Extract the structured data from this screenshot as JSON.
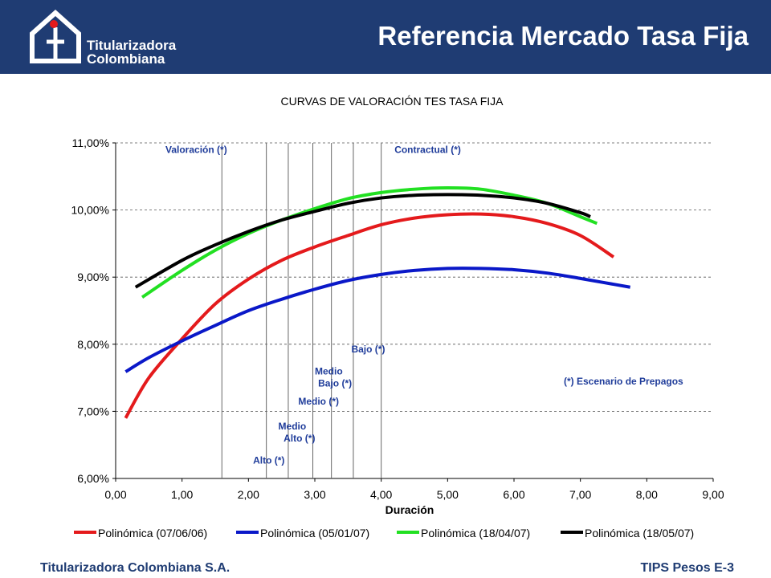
{
  "header": {
    "title": "Referencia Mercado Tasa Fija",
    "logo_line1": "Titularizadora",
    "logo_line2": "Colombiana",
    "background": "#1f3c73"
  },
  "footer": {
    "left": "Titularizadora Colombiana S.A.",
    "right": "TIPS Pesos E-3"
  },
  "chart_data": {
    "type": "line",
    "title": "CURVAS DE VALORACIÓN TES TASA FIJA",
    "xlabel": "Duración",
    "ylabel": "",
    "xlim": [
      0,
      9
    ],
    "ylim": [
      0.06,
      0.11
    ],
    "x_ticks": [
      "0,00",
      "1,00",
      "2,00",
      "3,00",
      "4,00",
      "5,00",
      "6,00",
      "7,00",
      "8,00",
      "9,00"
    ],
    "y_ticks": [
      "6,00%",
      "7,00%",
      "8,00%",
      "9,00%",
      "10,00%",
      "11,00%"
    ],
    "y_tick_values": [
      0.06,
      0.07,
      0.08,
      0.09,
      0.1,
      0.11
    ],
    "grid": "horizontal dashed",
    "legend_position": "bottom",
    "series": [
      {
        "name": "Polinómica (07/06/06)",
        "color": "#e41a1c",
        "x": [
          0.15,
          0.5,
          1.0,
          1.5,
          2.0,
          2.5,
          3.0,
          3.5,
          4.0,
          4.5,
          5.0,
          5.5,
          6.0,
          6.5,
          7.0,
          7.5
        ],
        "y": [
          0.069,
          0.075,
          0.0808,
          0.086,
          0.0897,
          0.0925,
          0.0945,
          0.0962,
          0.0978,
          0.0988,
          0.0993,
          0.0994,
          0.099,
          0.098,
          0.0962,
          0.093
        ]
      },
      {
        "name": "Polinómica (05/01/07)",
        "color": "#0a18c8",
        "x": [
          0.15,
          0.5,
          1.0,
          1.5,
          2.0,
          2.5,
          3.0,
          3.5,
          4.0,
          4.5,
          5.0,
          5.5,
          6.0,
          6.5,
          7.0,
          7.75
        ],
        "y": [
          0.0759,
          0.078,
          0.0805,
          0.0828,
          0.085,
          0.0867,
          0.0882,
          0.0895,
          0.0904,
          0.091,
          0.0913,
          0.0913,
          0.0911,
          0.0906,
          0.0898,
          0.0885
        ]
      },
      {
        "name": "Polinómica (18/04/07)",
        "color": "#22e022",
        "x": [
          0.4,
          1.0,
          1.5,
          2.0,
          2.5,
          3.0,
          3.5,
          4.0,
          4.5,
          5.0,
          5.5,
          6.0,
          6.5,
          7.0,
          7.25
        ],
        "y": [
          0.087,
          0.091,
          0.094,
          0.0965,
          0.0985,
          0.1002,
          0.1017,
          0.1026,
          0.1031,
          0.1033,
          0.1031,
          0.1022,
          0.101,
          0.099,
          0.098
        ]
      },
      {
        "name": "Polinómica (18/05/07)",
        "color": "#000000",
        "x": [
          0.3,
          1.0,
          1.5,
          2.0,
          2.5,
          3.0,
          3.5,
          4.0,
          4.5,
          5.0,
          5.5,
          6.0,
          6.5,
          7.0,
          7.15
        ],
        "y": [
          0.0885,
          0.0925,
          0.0948,
          0.0968,
          0.0985,
          0.0998,
          0.101,
          0.1018,
          0.1022,
          0.1023,
          0.1022,
          0.1018,
          0.101,
          0.0996,
          0.099
        ]
      }
    ],
    "vertical_lines_x": [
      1.6,
      2.27,
      2.6,
      2.97,
      3.25,
      3.58,
      4.0
    ],
    "annotations": [
      {
        "text": "Valoración (*)",
        "x": 0.75,
        "y": 0.1085
      },
      {
        "text": "Contractual (*)",
        "x": 4.2,
        "y": 0.1085
      },
      {
        "text": "Bajo (*)",
        "x": 3.55,
        "y": 0.0788
      },
      {
        "text": "Medio",
        "x": 3.0,
        "y": 0.0755
      },
      {
        "text": "Bajo (*)",
        "x": 3.05,
        "y": 0.0737
      },
      {
        "text": "(*) Escenario de Prepagos",
        "x": 6.75,
        "y": 0.074
      },
      {
        "text": "Medio (*)",
        "x": 2.75,
        "y": 0.071
      },
      {
        "text": "Medio",
        "x": 2.45,
        "y": 0.0673
      },
      {
        "text": "Alto (*)",
        "x": 2.53,
        "y": 0.0655
      },
      {
        "text": "Alto (*)",
        "x": 2.07,
        "y": 0.0622
      }
    ]
  }
}
